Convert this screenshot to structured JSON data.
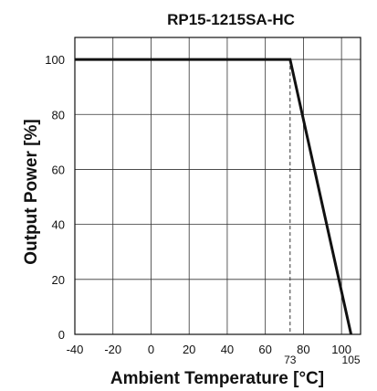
{
  "chart_data": {
    "type": "line",
    "title": "RP15-1215SA-HC",
    "xlabel": "Ambient Temperature [°C]",
    "ylabel": "Output Power [%]",
    "xlim": [
      -40,
      110
    ],
    "ylim": [
      0,
      108
    ],
    "xticks": [
      -40,
      -20,
      0,
      20,
      40,
      60,
      80,
      100
    ],
    "yticks": [
      0,
      20,
      40,
      60,
      80,
      100
    ],
    "grid": true,
    "series": [
      {
        "x": [
          -40,
          73,
          105
        ],
        "y": [
          100,
          100,
          0
        ]
      }
    ],
    "annotations": [
      {
        "x": 73,
        "label": "73",
        "style": "dashed-vertical"
      },
      {
        "x": 105,
        "label": "105"
      }
    ]
  }
}
